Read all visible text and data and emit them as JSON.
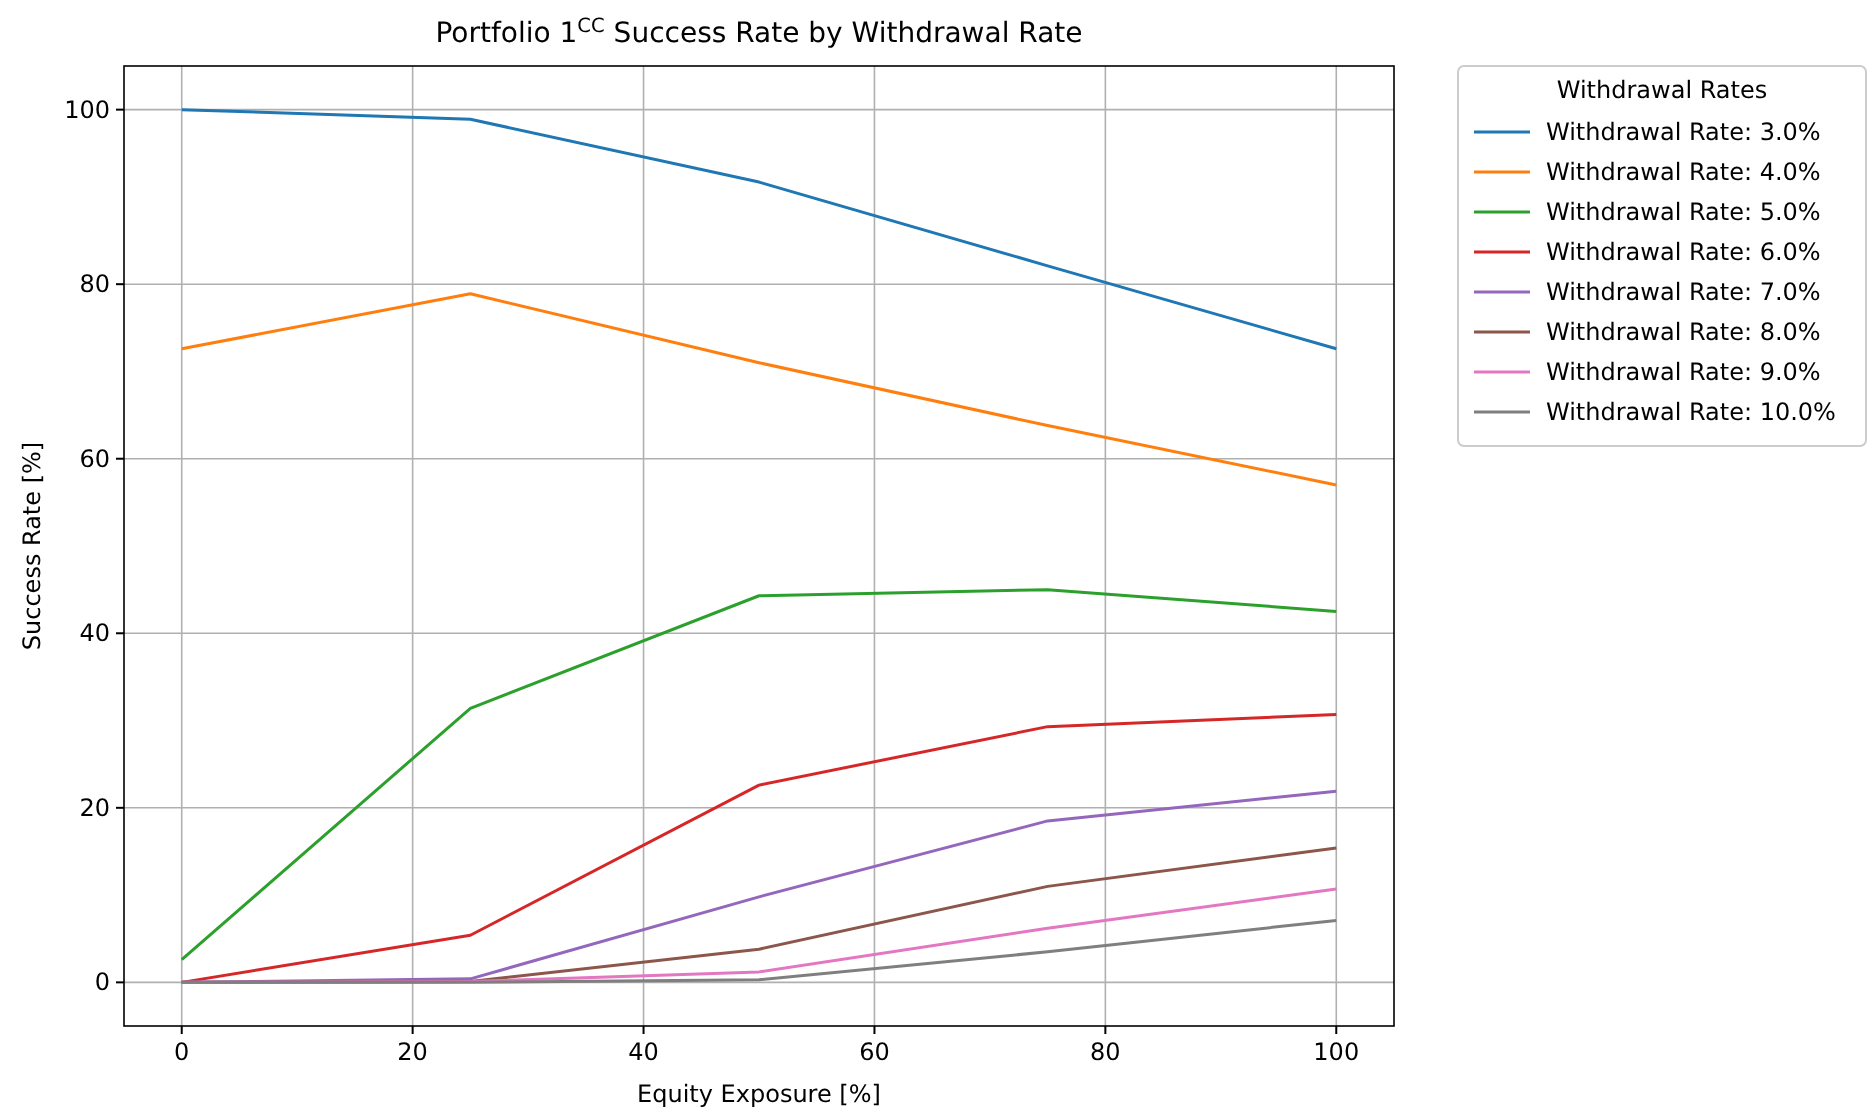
{
  "chart_data": {
    "type": "line",
    "title": "Portfolio 1$^{CC}$ Success Rate by Withdrawal Rate",
    "xlabel": "Equity Exposure [%]",
    "ylabel": "Success Rate [%]",
    "legend_title": "Withdrawal Rates",
    "x": [
      0,
      25,
      50,
      75,
      100
    ],
    "xlim": [
      -5,
      105
    ],
    "ylim": [
      -5,
      105
    ],
    "xticks": [
      0,
      20,
      40,
      60,
      80,
      100
    ],
    "yticks": [
      0,
      20,
      40,
      60,
      80,
      100
    ],
    "grid": true,
    "legend": "top right",
    "series": [
      {
        "name": "Withdrawal Rate: 3.0%",
        "color": "#1f77b4",
        "values": [
          100,
          98.9,
          91.7,
          82.1,
          72.6
        ]
      },
      {
        "name": "Withdrawal Rate: 4.0%",
        "color": "#ff7f0e",
        "values": [
          72.6,
          78.9,
          71.0,
          63.8,
          57.0
        ]
      },
      {
        "name": "Withdrawal Rate: 5.0%",
        "color": "#2ca02c",
        "values": [
          2.6,
          31.4,
          44.3,
          45.0,
          42.5
        ]
      },
      {
        "name": "Withdrawal Rate: 6.0%",
        "color": "#d62728",
        "values": [
          0,
          5.4,
          22.6,
          29.3,
          30.7
        ]
      },
      {
        "name": "Withdrawal Rate: 7.0%",
        "color": "#9467bd",
        "values": [
          0,
          0.4,
          9.8,
          18.5,
          21.9
        ]
      },
      {
        "name": "Withdrawal Rate: 8.0%",
        "color": "#8c564b",
        "values": [
          0,
          0.1,
          3.8,
          11.0,
          15.4
        ]
      },
      {
        "name": "Withdrawal Rate: 9.0%",
        "color": "#e377c2",
        "values": [
          0,
          0.1,
          1.2,
          6.2,
          10.7
        ]
      },
      {
        "name": "Withdrawal Rate: 10.0%",
        "color": "#7f7f7f",
        "values": [
          0,
          0,
          0.3,
          3.5,
          7.1
        ]
      }
    ]
  }
}
